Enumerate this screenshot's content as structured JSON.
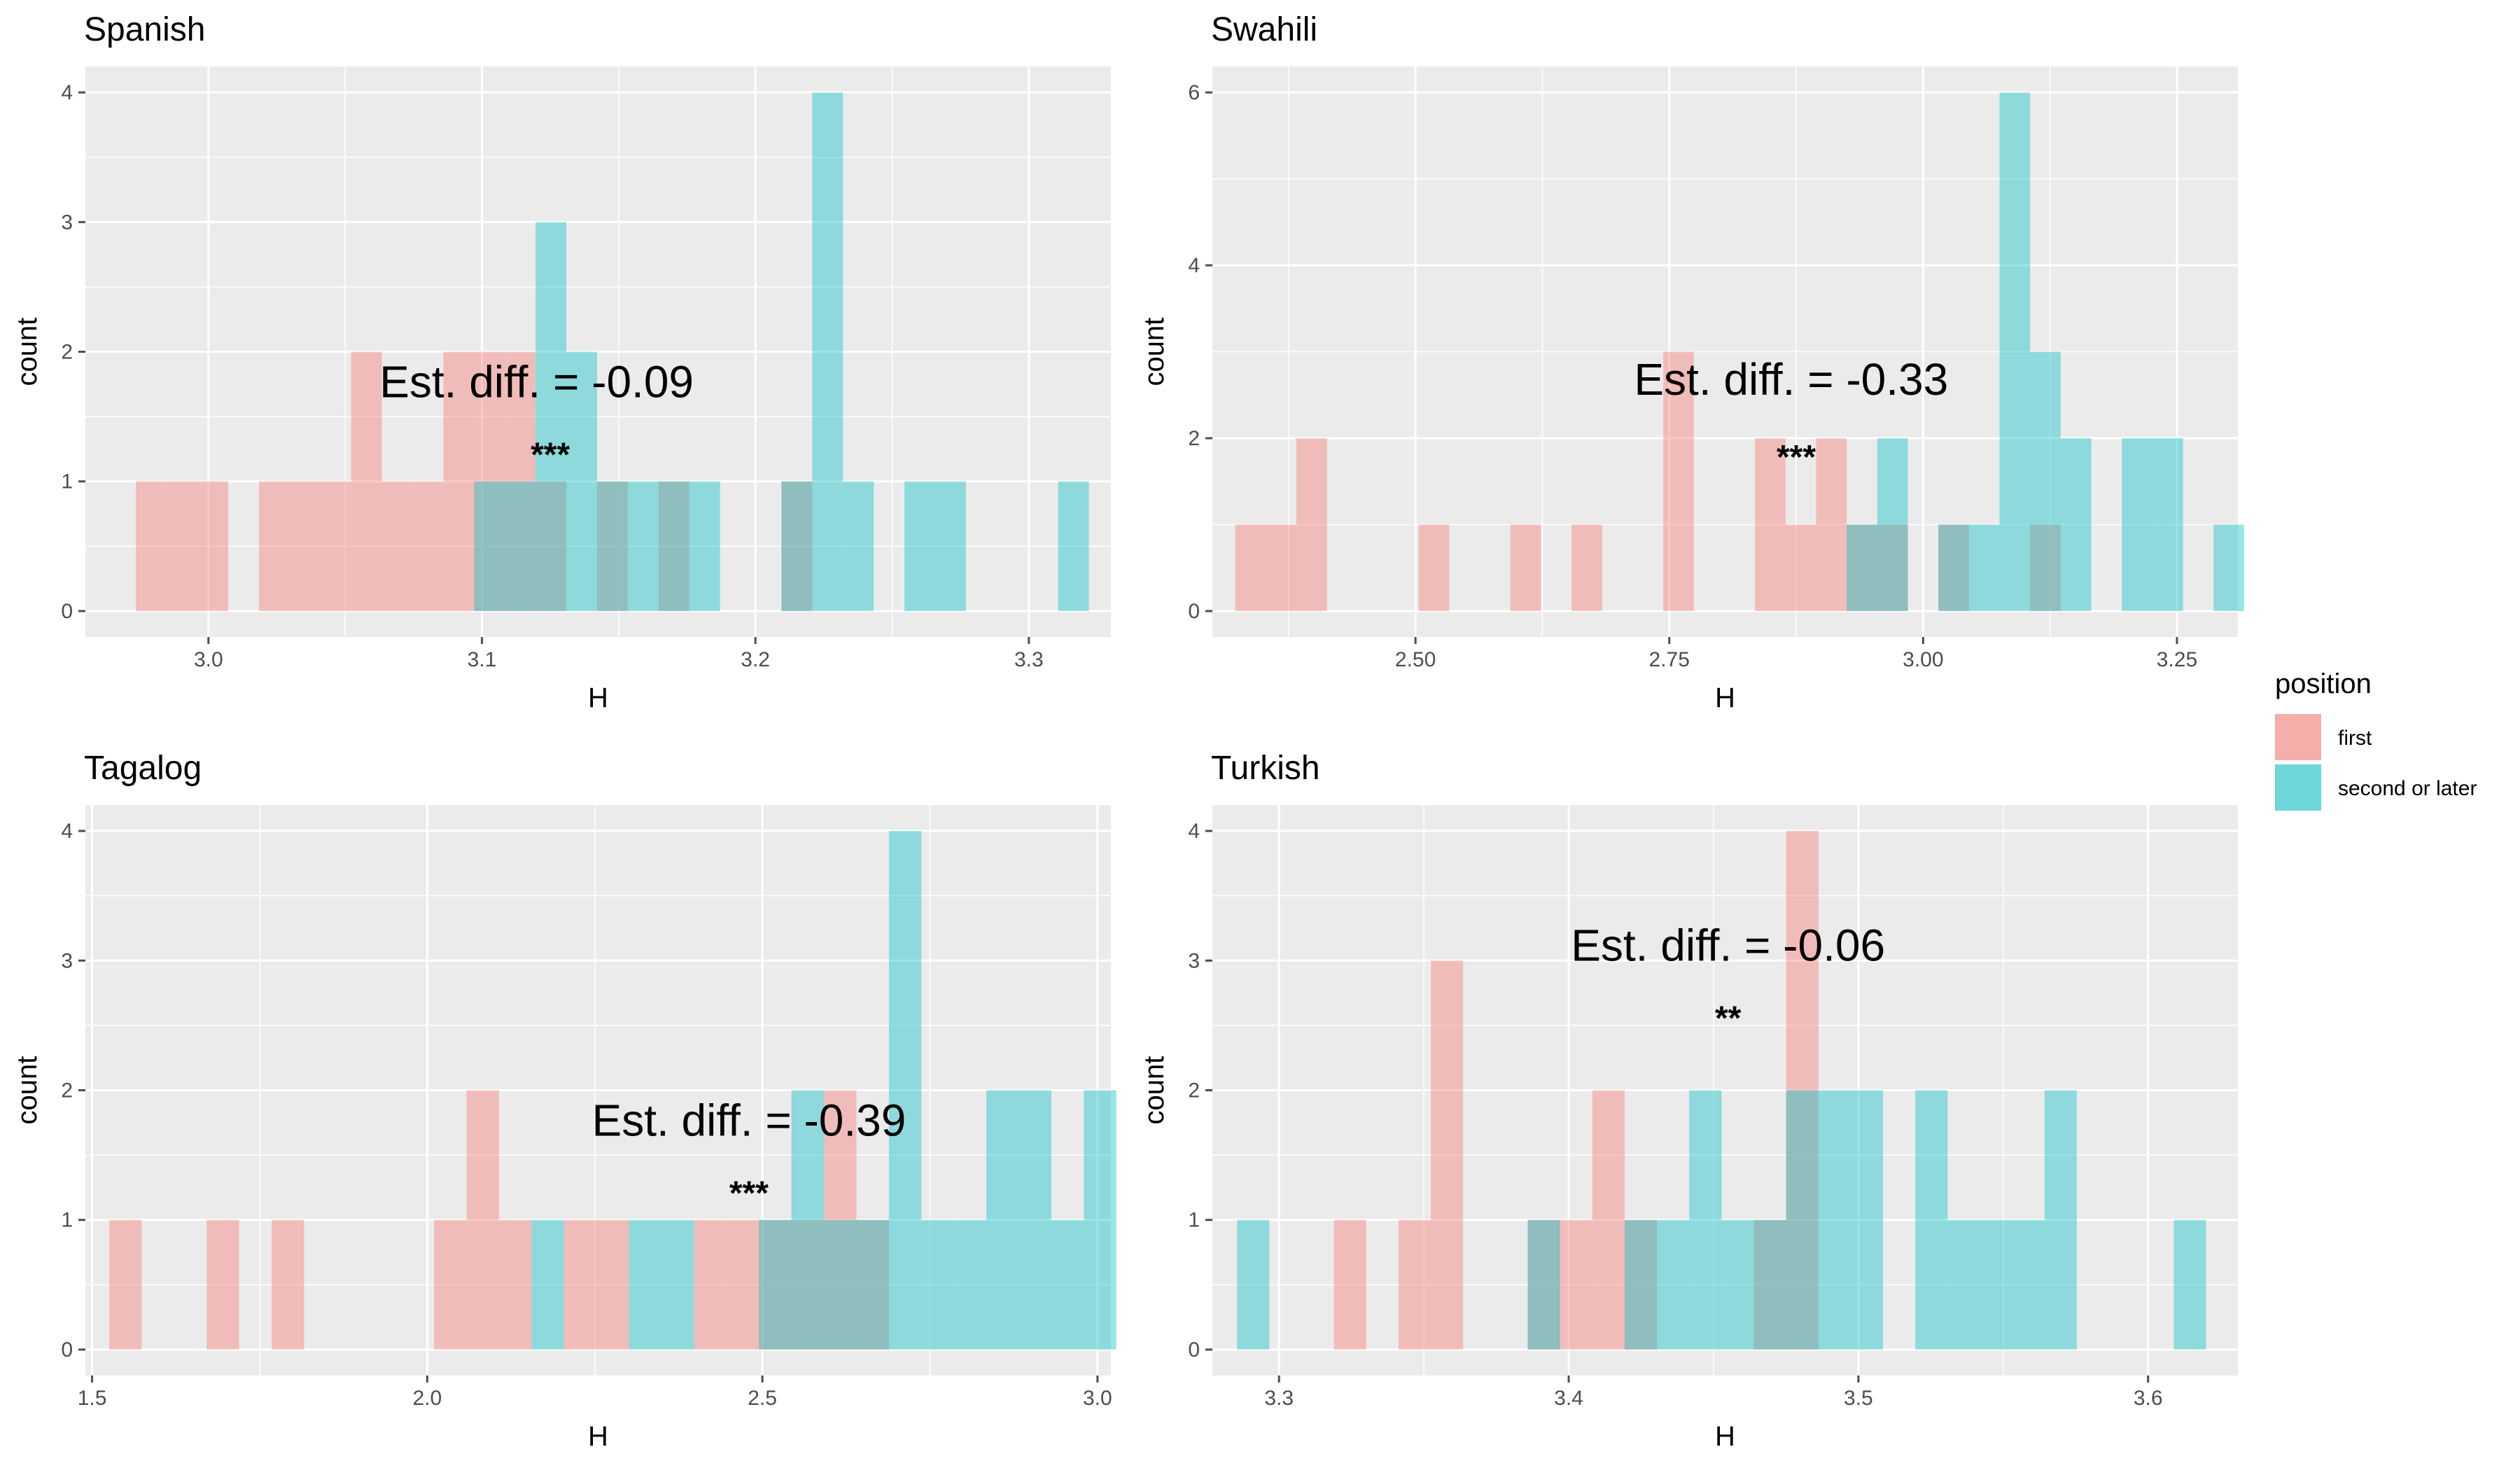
{
  "colors": {
    "first": "#F8766D",
    "second": "#00BFC4",
    "panel_bg": "#EBEBEB",
    "grid": "#FFFFFF",
    "tick": "#4D4D4D"
  },
  "legend": {
    "title": "position",
    "items": [
      {
        "label": "first",
        "color": "#F8766D"
      },
      {
        "label": "second or later",
        "color": "#00BFC4"
      }
    ]
  },
  "chart_data": [
    {
      "type": "histogram",
      "title": "Spanish",
      "xlabel": "H",
      "ylabel": "count",
      "xlim": [
        2.955,
        3.33
      ],
      "ylim": [
        -0.2,
        4.2
      ],
      "xticks": [
        3.0,
        3.1,
        3.2,
        3.3
      ],
      "xtick_labels": [
        "3.0",
        "3.1",
        "3.2",
        "3.3"
      ],
      "yticks": [
        0,
        1,
        2,
        3,
        4
      ],
      "annotation": {
        "text": "Est. diff. = -0.09",
        "x": 3.12,
        "y": 1.65
      },
      "stars": {
        "text": "***",
        "x": 3.125,
        "y": 1.12
      },
      "binwidth": 0.01124,
      "bins_x0": 2.9735,
      "first_counts": [
        1,
        1,
        1,
        0,
        1,
        1,
        1,
        2,
        1,
        1,
        2,
        2,
        2,
        1,
        0,
        1,
        0,
        1,
        0,
        0,
        0,
        1,
        0,
        0,
        0,
        0,
        0,
        0,
        0,
        0,
        0
      ],
      "second_counts": [
        0,
        0,
        0,
        0,
        0,
        0,
        0,
        0,
        0,
        0,
        0,
        1,
        1,
        3,
        2,
        1,
        1,
        1,
        1,
        0,
        0,
        1,
        4,
        1,
        0,
        1,
        1,
        0,
        0,
        0,
        1
      ]
    },
    {
      "type": "histogram",
      "title": "Swahili",
      "xlabel": "H",
      "ylabel": "count",
      "xlim": [
        2.3,
        3.31
      ],
      "ylim": [
        -0.3,
        6.3
      ],
      "xticks": [
        2.5,
        2.75,
        3.0,
        3.25
      ],
      "xtick_labels": [
        "2.50",
        "2.75",
        "3.00",
        "3.25"
      ],
      "yticks": [
        0,
        2,
        4,
        6
      ],
      "annotation": {
        "text": "Est. diff. = -0.33",
        "x": 2.87,
        "y": 2.5
      },
      "stars": {
        "text": "***",
        "x": 2.875,
        "y": 1.65
      },
      "binwidth": 0.03011,
      "bins_x0": 2.3225,
      "first_counts": [
        1,
        1,
        2,
        0,
        0,
        0,
        1,
        0,
        0,
        1,
        0,
        1,
        0,
        0,
        3,
        0,
        0,
        2,
        1,
        2,
        1,
        1,
        0,
        1,
        0,
        0,
        1,
        0,
        0,
        0,
        0,
        0
      ],
      "second_counts": [
        0,
        0,
        0,
        0,
        0,
        0,
        0,
        0,
        0,
        0,
        0,
        0,
        0,
        0,
        0,
        0,
        0,
        0,
        0,
        0,
        1,
        2,
        0,
        1,
        1,
        6,
        3,
        2,
        0,
        2,
        2,
        0,
        1
      ]
    },
    {
      "type": "histogram",
      "title": "Tagalog",
      "xlabel": "H",
      "ylabel": "count",
      "xlim": [
        1.49,
        3.02
      ],
      "ylim": [
        -0.2,
        4.2
      ],
      "xticks": [
        1.5,
        2.0,
        2.5,
        3.0
      ],
      "xtick_labels": [
        "1.5",
        "2.0",
        "2.5",
        "3.0"
      ],
      "yticks": [
        0,
        1,
        2,
        3,
        4
      ],
      "annotation": {
        "text": "Est. diff. = -0.39",
        "x": 2.48,
        "y": 1.65
      },
      "stars": {
        "text": "***",
        "x": 2.48,
        "y": 1.12
      },
      "binwidth": 0.04847,
      "bins_x0": 1.5255,
      "first_counts": [
        1,
        0,
        0,
        1,
        0,
        1,
        0,
        0,
        0,
        0,
        1,
        2,
        1,
        0,
        1,
        1,
        0,
        0,
        1,
        1,
        1,
        1,
        2,
        1,
        0,
        0,
        0,
        0,
        0,
        0
      ],
      "second_counts": [
        0,
        0,
        0,
        0,
        0,
        0,
        0,
        0,
        0,
        0,
        0,
        0,
        0,
        1,
        0,
        0,
        1,
        1,
        0,
        0,
        1,
        2,
        1,
        1,
        4,
        1,
        1,
        2,
        2,
        1,
        2
      ]
    },
    {
      "type": "histogram",
      "title": "Turkish",
      "xlabel": "H",
      "ylabel": "count",
      "xlim": [
        3.277,
        3.631
      ],
      "ylim": [
        -0.2,
        4.2
      ],
      "xticks": [
        3.3,
        3.4,
        3.5,
        3.6
      ],
      "xtick_labels": [
        "3.3",
        "3.4",
        "3.5",
        "3.6"
      ],
      "yticks": [
        0,
        1,
        2,
        3,
        4
      ],
      "annotation": {
        "text": "Est. diff. = -0.06",
        "x": 3.455,
        "y": 3.0
      },
      "stars": {
        "text": "**",
        "x": 3.455,
        "y": 2.47
      },
      "binwidth": 0.01115,
      "bins_x0": 3.2855,
      "first_counts": [
        0,
        0,
        0,
        1,
        0,
        1,
        3,
        0,
        0,
        1,
        1,
        2,
        1,
        0,
        0,
        0,
        1,
        4,
        0,
        0,
        0,
        0,
        0,
        0,
        0,
        0,
        0,
        0,
        0,
        0,
        0
      ],
      "second_counts": [
        1,
        0,
        0,
        0,
        0,
        0,
        0,
        0,
        0,
        1,
        0,
        0,
        1,
        1,
        2,
        1,
        1,
        2,
        2,
        2,
        0,
        2,
        1,
        1,
        1,
        2,
        0,
        0,
        0,
        1,
        0
      ]
    }
  ]
}
